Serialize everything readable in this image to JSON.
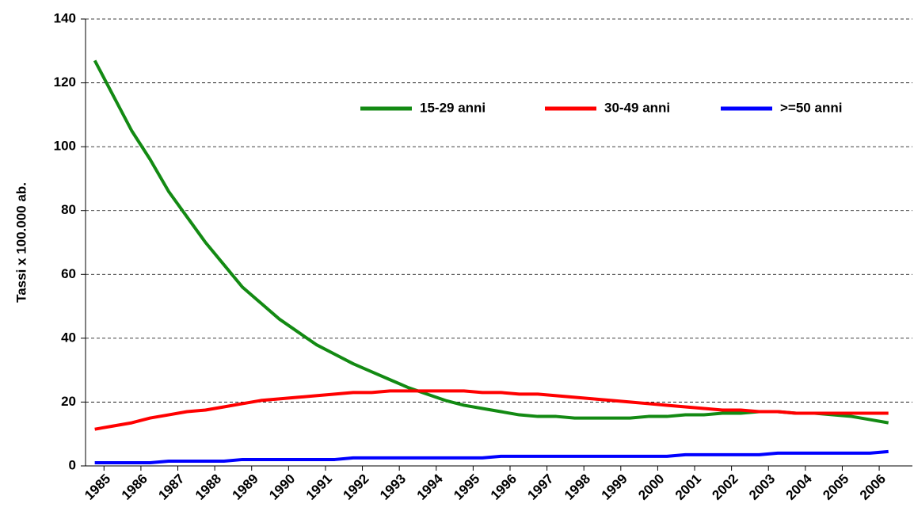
{
  "chart_data": {
    "type": "line",
    "y_label": "Tassi x 100.000 ab.",
    "x": [
      1984.75,
      1985.25,
      1985.75,
      1986.25,
      1986.75,
      1987.25,
      1987.75,
      1988.25,
      1988.75,
      1989.25,
      1989.75,
      1990.25,
      1990.75,
      1991.25,
      1991.75,
      1992.25,
      1992.75,
      1993.25,
      1993.75,
      1994.25,
      1994.75,
      1995.25,
      1995.75,
      1996.25,
      1996.75,
      1997.25,
      1997.75,
      1998.25,
      1998.75,
      1999.25,
      1999.75,
      2000.25,
      2000.75,
      2001.25,
      2001.75,
      2002.25,
      2002.75,
      2003.25,
      2003.75,
      2004.25,
      2004.75,
      2005.25,
      2005.75,
      2006.25
    ],
    "series": [
      {
        "name": "15-29 anni",
        "color": "#138a13",
        "values": [
          127,
          116,
          105,
          96,
          86,
          78,
          70,
          63,
          56,
          51,
          46,
          42,
          38,
          35,
          32,
          29.5,
          27,
          24.5,
          22.5,
          20.5,
          19,
          18,
          17,
          16,
          15.5,
          15.5,
          15,
          15,
          15,
          15,
          15.5,
          15.5,
          16,
          16,
          16.5,
          16.5,
          17,
          17,
          16.5,
          16.5,
          16,
          15.5,
          14.5,
          13.5
        ]
      },
      {
        "name": "30-49 anni",
        "color": "#ff0000",
        "values": [
          11.5,
          12.5,
          13.5,
          15,
          16,
          17,
          17.5,
          18.5,
          19.5,
          20.5,
          21,
          21.5,
          22,
          22.5,
          23,
          23,
          23.5,
          23.5,
          23.5,
          23.5,
          23.5,
          23,
          23,
          22.5,
          22.5,
          22,
          21.5,
          21,
          20.5,
          20,
          19.5,
          19,
          18.5,
          18,
          17.5,
          17.5,
          17,
          17,
          16.5,
          16.5,
          16.5,
          16.5,
          16.5,
          16.5
        ]
      },
      {
        "name": ">=50 anni",
        "color": "#0000ff",
        "values": [
          1,
          1,
          1,
          1,
          1.5,
          1.5,
          1.5,
          1.5,
          2,
          2,
          2,
          2,
          2,
          2,
          2.5,
          2.5,
          2.5,
          2.5,
          2.5,
          2.5,
          2.5,
          2.5,
          3,
          3,
          3,
          3,
          3,
          3,
          3,
          3,
          3,
          3,
          3.5,
          3.5,
          3.5,
          3.5,
          3.5,
          4,
          4,
          4,
          4,
          4,
          4,
          4.5
        ]
      }
    ],
    "xlim": [
      1984.5,
      2006.9
    ],
    "xticks": [
      1985,
      1986,
      1987,
      1988,
      1989,
      1990,
      1991,
      1992,
      1993,
      1994,
      1995,
      1996,
      1997,
      1998,
      1999,
      2000,
      2001,
      2002,
      2003,
      2004,
      2005,
      2006
    ],
    "ylim": [
      0,
      140
    ],
    "yticks": [
      0,
      20,
      40,
      60,
      80,
      100,
      120,
      140
    ],
    "grid": true,
    "legend": "top"
  }
}
